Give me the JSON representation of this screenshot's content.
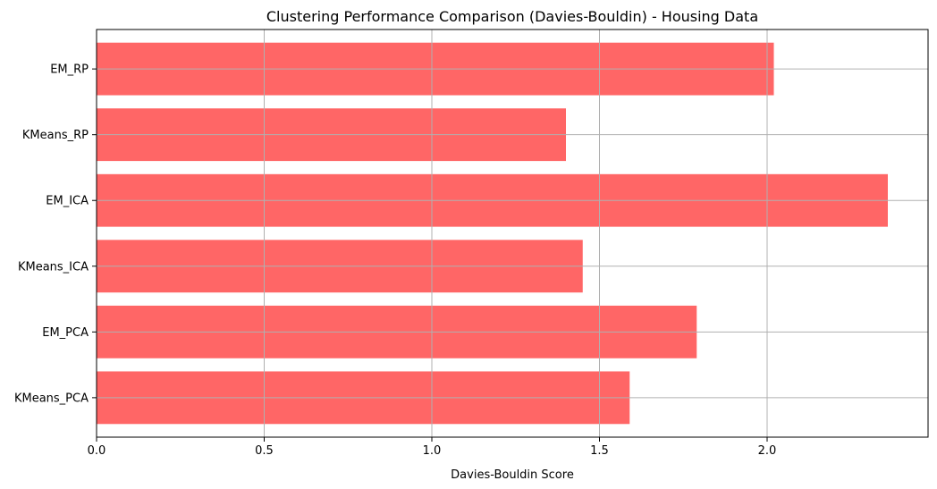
{
  "chart_data": {
    "type": "bar",
    "orientation": "horizontal",
    "title": "Clustering Performance Comparison (Davies-Bouldin) - Housing Data",
    "xlabel": "Davies-Bouldin Score",
    "ylabel": "",
    "categories": [
      "KMeans_PCA",
      "EM_PCA",
      "KMeans_ICA",
      "EM_ICA",
      "KMeans_RP",
      "EM_RP"
    ],
    "values": [
      1.59,
      1.79,
      1.45,
      2.36,
      1.4,
      2.02
    ],
    "xlim": [
      0,
      2.48
    ],
    "xticks": [
      0.0,
      0.5,
      1.0,
      1.5,
      2.0
    ],
    "xtick_labels": [
      "0.0",
      "0.5",
      "1.0",
      "1.5",
      "2.0"
    ],
    "grid": true,
    "bar_color": "#ff6666",
    "grid_color": "#b0b0b0"
  }
}
